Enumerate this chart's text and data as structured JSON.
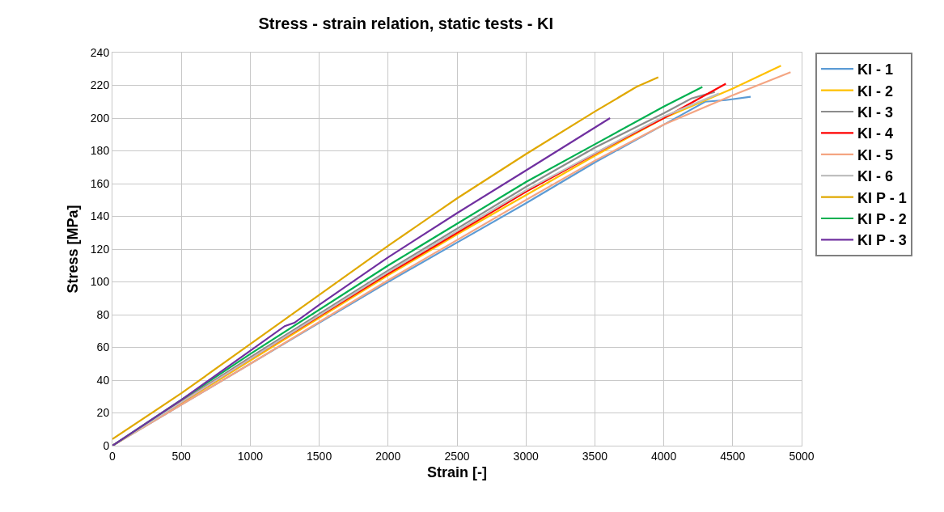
{
  "chart_data": {
    "type": "line",
    "title": "Stress - strain relation, static tests - KI",
    "xlabel": "Strain [-]",
    "ylabel": "Stress [MPa]",
    "xlim": [
      0,
      5000
    ],
    "xticks": [
      0,
      500,
      1000,
      1500,
      2000,
      2500,
      3000,
      3500,
      4000,
      4500,
      5000
    ],
    "ylim": [
      0,
      240
    ],
    "yticks": [
      0,
      20,
      40,
      60,
      80,
      100,
      120,
      140,
      160,
      180,
      200,
      220,
      240
    ],
    "grid": true,
    "legend": "right",
    "marker": "none",
    "line_style": "solid",
    "series": [
      {
        "name": "KI - 1",
        "color": "#5b9bd5",
        "x": [
          0,
          500,
          1000,
          1500,
          2000,
          2500,
          3000,
          3500,
          4000,
          4300,
          4450,
          4630
        ],
        "values": [
          0,
          25,
          50,
          75,
          100,
          124,
          148,
          173,
          196,
          210,
          211,
          213
        ]
      },
      {
        "name": "KI - 2",
        "color": "#ffc000",
        "x": [
          0,
          500,
          1000,
          1500,
          2000,
          2500,
          3000,
          3500,
          4000,
          4500,
          4850
        ],
        "values": [
          0,
          26,
          52,
          78,
          104,
          129,
          153,
          177,
          200,
          218,
          232
        ]
      },
      {
        "name": "KI - 3",
        "color": "#8c8c8c",
        "x": [
          0,
          1000,
          2000,
          3000,
          3500,
          4000,
          4200,
          4370
        ],
        "values": [
          0,
          54,
          107,
          158,
          182,
          203,
          212,
          216
        ]
      },
      {
        "name": "KI - 4",
        "color": "#ff0000",
        "x": [
          0,
          1000,
          2000,
          3000,
          3560,
          4000,
          4450
        ],
        "values": [
          0,
          53,
          105,
          155,
          181,
          200,
          221
        ]
      },
      {
        "name": "KI - 5",
        "color": "#f4a582",
        "x": [
          0,
          1000,
          2000,
          3000,
          3500,
          4000,
          4500,
          4920
        ],
        "values": [
          0,
          50,
          101,
          150,
          174,
          196,
          214,
          228
        ]
      },
      {
        "name": "KI - 6",
        "color": "#bfbfbf",
        "x": [
          0,
          1000,
          2000,
          3000,
          4000,
          4400
        ],
        "values": [
          0,
          53,
          106,
          156,
          201,
          215
        ]
      },
      {
        "name": "KI P - 1",
        "color": "#e0a800",
        "x": [
          0,
          500,
          1000,
          1500,
          2000,
          2500,
          3000,
          3500,
          3800,
          3960
        ],
        "values": [
          4,
          32,
          62,
          92,
          122,
          151,
          178,
          204,
          219,
          225
        ]
      },
      {
        "name": "KI P - 2",
        "color": "#00b050",
        "x": [
          0,
          1000,
          2000,
          3000,
          3500,
          4000,
          4280
        ],
        "values": [
          0,
          56,
          110,
          161,
          184,
          207,
          219
        ]
      },
      {
        "name": "KI P - 3",
        "color": "#7030a0",
        "x": [
          0,
          500,
          1000,
          1250,
          1320,
          1500,
          2000,
          2500,
          3000,
          3610
        ],
        "values": [
          0,
          28,
          58,
          73,
          75,
          86,
          115,
          142,
          168,
          200
        ]
      }
    ]
  }
}
